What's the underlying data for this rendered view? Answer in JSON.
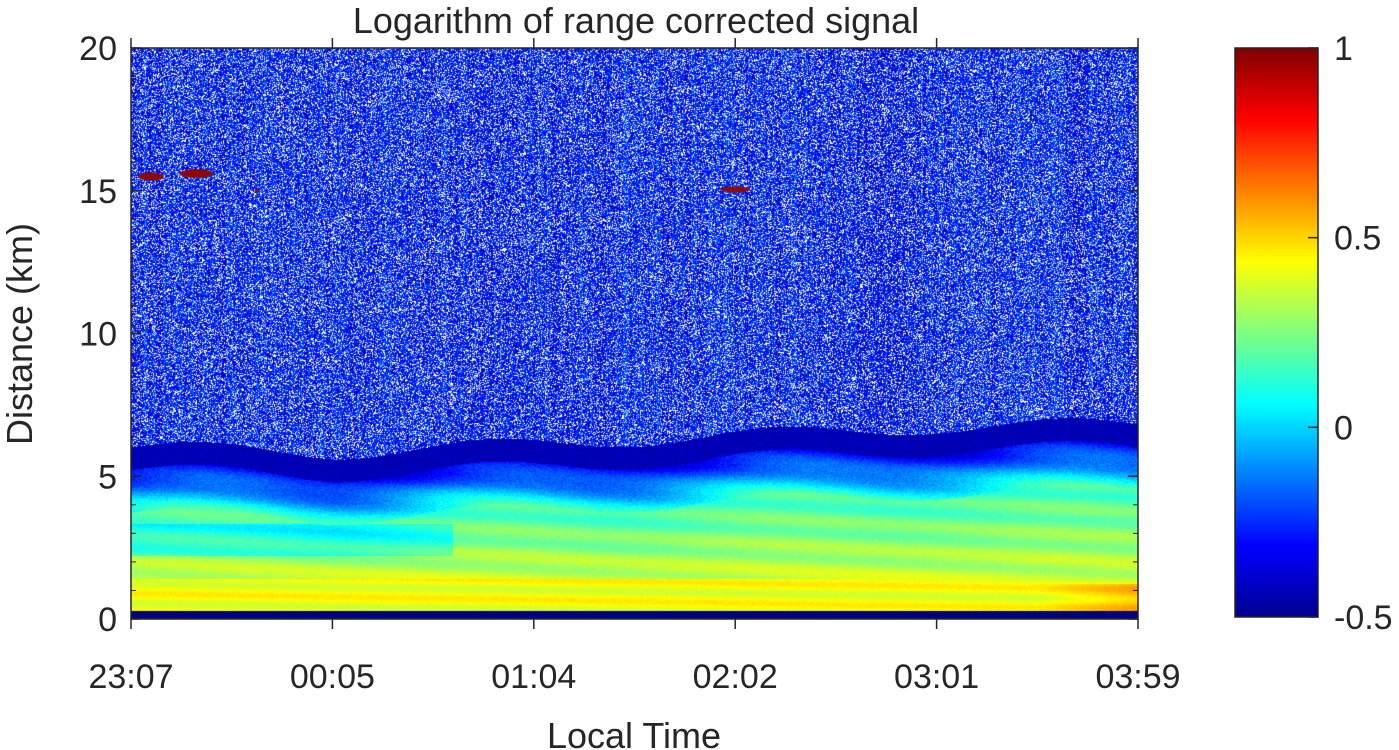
{
  "chart_data": {
    "type": "heatmap",
    "title": "Logarithm of range corrected signal",
    "xlabel": "Local Time",
    "ylabel": "Distance (km)",
    "x_tick_labels": [
      "23:07",
      "00:05",
      "01:04",
      "02:02",
      "03:01",
      "03:59"
    ],
    "y_ticks": [
      0,
      5,
      10,
      15,
      20
    ],
    "ylim": [
      0,
      20
    ],
    "colormap": "jet",
    "colorbar": {
      "range": [
        -0.5,
        1
      ],
      "ticks": [
        -0.5,
        0,
        0.5,
        1
      ],
      "tick_labels": [
        "-0.5",
        "0",
        "0.5",
        "1"
      ],
      "placement": "right"
    },
    "grid": false,
    "features": {
      "boundary_layer_top_km": [
        5.2,
        5.0,
        5.3,
        5.6,
        5.9,
        6.0
      ],
      "near_surface_strong_signal_km": [
        0.3,
        1.5
      ],
      "cirrus_clouds_km": [
        15.0,
        15.6
      ]
    }
  }
}
